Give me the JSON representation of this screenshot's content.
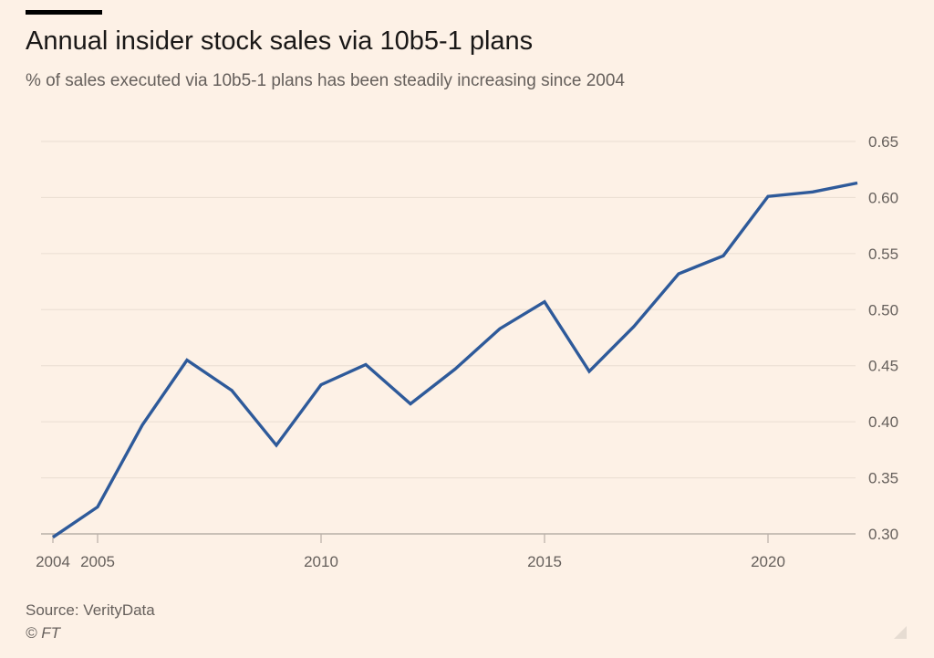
{
  "header": {
    "title": "Annual insider stock sales via 10b5-1 plans",
    "subtitle": "% of sales executed via 10b5-1 plans has been steadily increasing since 2004"
  },
  "footer": {
    "source": "Source: VerityData",
    "copyright": "© FT"
  },
  "colors": {
    "background": "#FDF1E6",
    "line": "#2E5A9A",
    "gridline": "#E9DDD2",
    "axis_text": "#66605C"
  },
  "chart_data": {
    "type": "line",
    "title": "Annual insider stock sales via 10b5-1 plans",
    "subtitle": "% of sales executed via 10b5-1 plans has been steadily increasing since 2004",
    "xlabel": "",
    "ylabel": "",
    "x": [
      2004,
      2005,
      2006,
      2007,
      2008,
      2009,
      2010,
      2011,
      2012,
      2013,
      2014,
      2015,
      2016,
      2017,
      2018,
      2019,
      2020,
      2021,
      2022
    ],
    "series": [
      {
        "values": [
          0.297,
          0.324,
          0.397,
          0.455,
          0.428,
          0.379,
          0.433,
          0.451,
          0.416,
          0.447,
          0.483,
          0.507,
          0.445,
          0.485,
          0.532,
          0.548,
          0.601,
          0.605,
          0.613
        ]
      }
    ],
    "x_ticks": [
      2004,
      2005,
      2010,
      2015,
      2020
    ],
    "y_ticks": [
      0.3,
      0.35,
      0.4,
      0.45,
      0.5,
      0.55,
      0.6,
      0.65
    ],
    "y_tick_labels": [
      "0.30",
      "0.35",
      "0.40",
      "0.45",
      "0.50",
      "0.55",
      "0.60",
      "0.65"
    ],
    "xlim": [
      2004,
      2022
    ],
    "ylim": [
      0.3,
      0.65
    ],
    "y_axis_side": "right",
    "grid": "horizontal",
    "legend": "none"
  }
}
